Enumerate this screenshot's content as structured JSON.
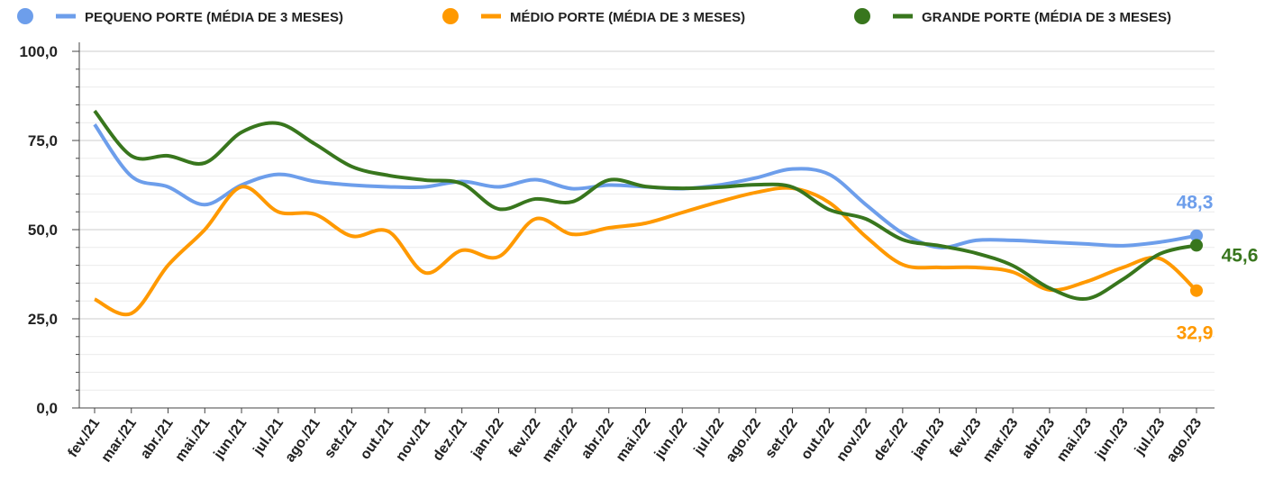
{
  "chart_data": {
    "type": "line",
    "categories": [
      "fev./21",
      "mar./21",
      "abr./21",
      "mai./21",
      "jun./21",
      "jul./21",
      "ago./21",
      "set./21",
      "out./21",
      "nov./21",
      "dez./21",
      "jan./22",
      "fev./22",
      "mar./22",
      "abr./22",
      "mai./22",
      "jun./22",
      "jul./22",
      "ago./22",
      "set./22",
      "out./22",
      "nov./22",
      "dez./22",
      "jan./23",
      "fev./23",
      "mar./23",
      "abr./23",
      "mai./23",
      "jun./23",
      "jul./23",
      "ago./23"
    ],
    "series": [
      {
        "name": "PEQUENO PORTE (MÉDIA DE 3 MESES)",
        "color": "#6d9eeb",
        "values": [
          79.5,
          65,
          62,
          57,
          62.5,
          65.5,
          63.5,
          62.5,
          62,
          62,
          63.5,
          62,
          64,
          61.5,
          62.5,
          62,
          61.5,
          62.5,
          64.5,
          67,
          65.5,
          57,
          49,
          45,
          47,
          47,
          46.5,
          46,
          45.5,
          46.5,
          48.3
        ],
        "value_labels": [
          null,
          null,
          null,
          null,
          null,
          null,
          null,
          null,
          null,
          null,
          null,
          null,
          null,
          null,
          null,
          null,
          null,
          null,
          null,
          null,
          null,
          null,
          null,
          null,
          null,
          null,
          null,
          null,
          null,
          null,
          "48,3"
        ]
      },
      {
        "name": "MÉDIO PORTE (MÉDIA DE 3 MESES)",
        "color": "#ff9900",
        "values": [
          30.5,
          26.5,
          40,
          50,
          62,
          55,
          54.3,
          48.2,
          49.5,
          37.9,
          44.2,
          42.4,
          53,
          48.7,
          50.5,
          51.8,
          54.8,
          57.8,
          60.4,
          61.6,
          57.6,
          48,
          40.2,
          39.4,
          39.4,
          38.1,
          33.1,
          35.4,
          39.4,
          41.9,
          32.9
        ],
        "value_labels": [
          null,
          null,
          null,
          null,
          null,
          null,
          null,
          null,
          null,
          null,
          null,
          null,
          null,
          null,
          null,
          null,
          null,
          null,
          null,
          null,
          null,
          null,
          null,
          null,
          null,
          null,
          null,
          null,
          null,
          null,
          "32,9"
        ]
      },
      {
        "name": "GRANDE PORTE (MÉDIA DE 3 MESES)",
        "color": "#38761d",
        "values": [
          83.3,
          70.7,
          70.7,
          68.7,
          77.3,
          79.8,
          74,
          67.7,
          65.2,
          63.9,
          62.9,
          55.8,
          58.6,
          57.8,
          63.9,
          62.1,
          61.6,
          61.9,
          62.6,
          61.9,
          55.6,
          53,
          47.2,
          45.5,
          43.4,
          39.9,
          33.6,
          30.6,
          36.1,
          43.2,
          45.6
        ],
        "value_labels": [
          null,
          null,
          null,
          null,
          null,
          null,
          null,
          null,
          null,
          null,
          null,
          null,
          null,
          null,
          null,
          null,
          null,
          null,
          null,
          null,
          null,
          null,
          null,
          null,
          null,
          null,
          null,
          null,
          null,
          null,
          "45,6"
        ]
      }
    ],
    "ylim": [
      0,
      100
    ],
    "yticks": [
      {
        "value": 0,
        "label": "0,0"
      },
      {
        "value": 25,
        "label": "25,0"
      },
      {
        "value": 50,
        "label": "50,0"
      },
      {
        "value": 75,
        "label": "75,0"
      },
      {
        "value": 100,
        "label": "100,0"
      }
    ],
    "minor_yticks": [
      5,
      10,
      15,
      20,
      30,
      35,
      40,
      45,
      55,
      60,
      65,
      70,
      80,
      85,
      90,
      95
    ],
    "grid": true,
    "legend": "top"
  }
}
